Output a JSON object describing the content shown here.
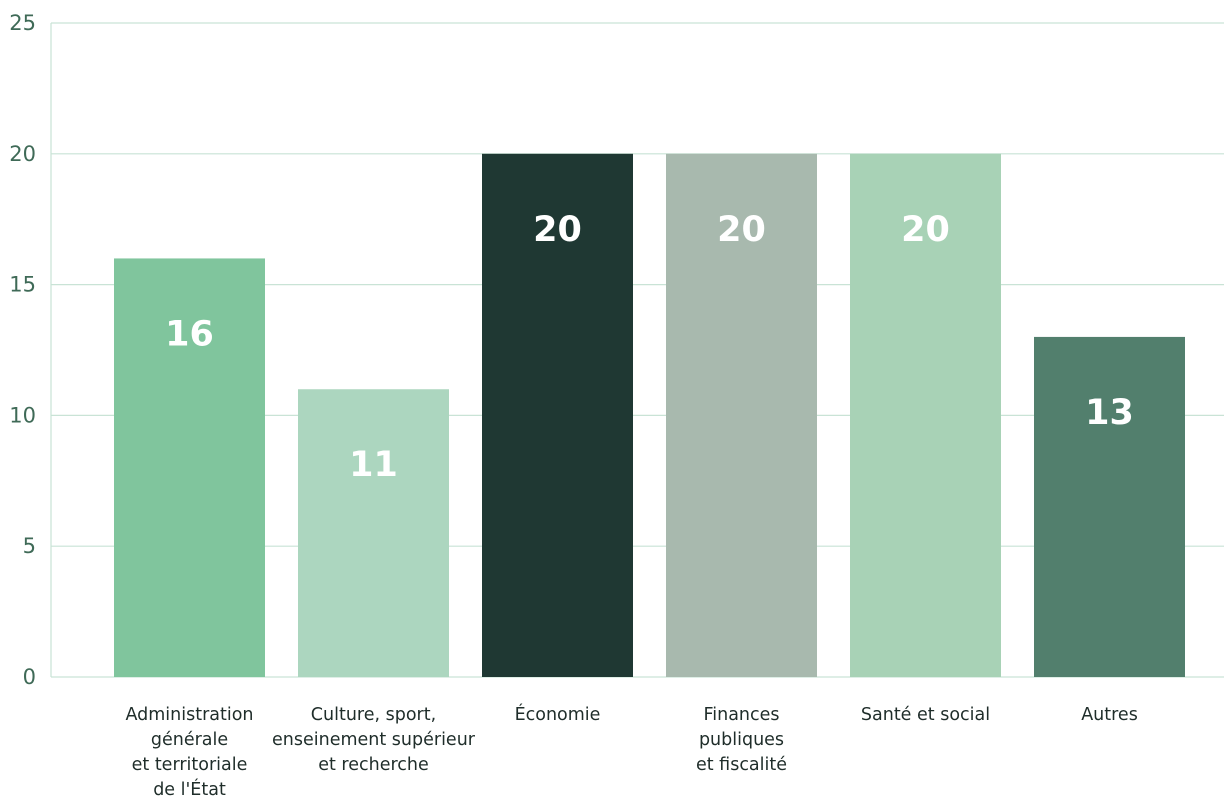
{
  "chart_data": {
    "type": "bar",
    "categories": [
      [
        "Administration",
        "générale",
        "et territoriale",
        "de l'État"
      ],
      [
        "Culture, sport,",
        "enseinement supérieur",
        "et recherche"
      ],
      [
        "Économie"
      ],
      [
        "Finances",
        "publiques",
        "et fiscalité"
      ],
      [
        "Santé et social"
      ],
      [
        "Autres"
      ]
    ],
    "values": [
      16,
      11,
      20,
      20,
      20,
      13
    ],
    "value_labels": [
      "16",
      "11",
      "20",
      "20",
      "20",
      "13"
    ],
    "colors": [
      "#80c59d",
      "#acd6bf",
      "#1f3833",
      "#a8b9ae",
      "#a8d2b6",
      "#527f6d"
    ],
    "ylim": [
      0,
      25
    ],
    "yticks": [
      0,
      5,
      10,
      15,
      20,
      25
    ],
    "ytick_labels": [
      "0",
      "5",
      "10",
      "15",
      "20",
      "25"
    ],
    "grid": true,
    "legend": "none",
    "title": "",
    "xlabel": "",
    "ylabel": "",
    "grid_color": "#c9e3d6",
    "tick_color": "#3f6a57"
  }
}
